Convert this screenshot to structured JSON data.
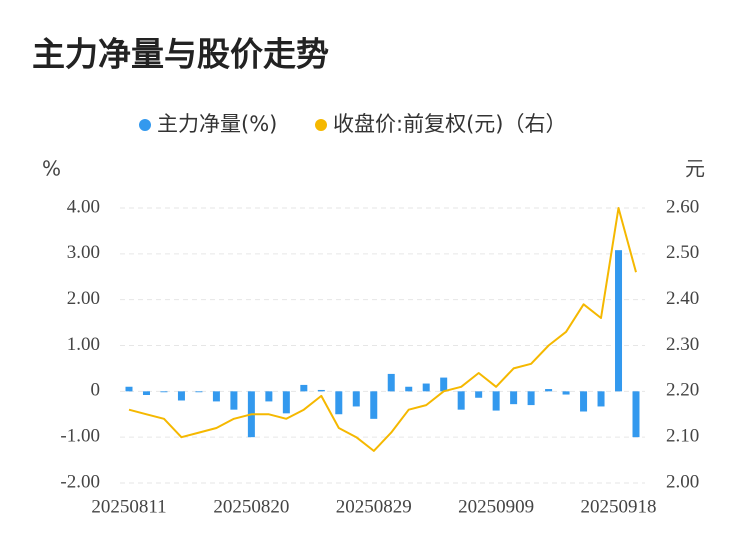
{
  "chart_data": {
    "type": "bar_line",
    "title": "主力净量与股价走势",
    "y_label": "%",
    "y2_label": "元",
    "categories": [
      "20250811",
      null,
      null,
      null,
      null,
      null,
      null,
      "20250820",
      null,
      null,
      null,
      null,
      null,
      null,
      "20250829",
      null,
      null,
      null,
      null,
      null,
      null,
      "20250909",
      null,
      null,
      null,
      null,
      null,
      null,
      "20250918",
      null
    ],
    "series": [
      {
        "name": "主力净量(%)",
        "type": "bar",
        "color": "#3399ee",
        "values": [
          0.1,
          -0.08,
          -0.02,
          -0.2,
          -0.02,
          -0.22,
          -0.4,
          -1.0,
          -0.22,
          -0.48,
          0.14,
          0.03,
          -0.5,
          -0.33,
          -0.6,
          0.38,
          0.1,
          0.17,
          0.3,
          -0.4,
          -0.14,
          -0.42,
          -0.28,
          -0.3,
          0.05,
          -0.07,
          -0.44,
          -0.33,
          3.08,
          -1.0
        ]
      },
      {
        "name": "收盘价:前复权(元)（右）",
        "type": "line",
        "axis": "y2",
        "color": "#f5b800",
        "values": [
          2.16,
          2.15,
          2.14,
          2.1,
          2.11,
          2.12,
          2.14,
          2.15,
          2.15,
          2.14,
          2.16,
          2.19,
          2.12,
          2.1,
          2.07,
          2.11,
          2.16,
          2.17,
          2.2,
          2.21,
          2.24,
          2.21,
          2.25,
          2.26,
          2.3,
          2.33,
          2.39,
          2.36,
          2.6,
          2.46
        ]
      }
    ],
    "ylim": [
      -2,
      4
    ],
    "yticks": [
      {
        "value": -2,
        "label": "-2.00"
      },
      {
        "value": -1,
        "label": "-1.00"
      },
      0,
      {
        "value": 1,
        "label": "1.00"
      },
      {
        "value": 2,
        "label": "2.00"
      },
      {
        "value": 3,
        "label": "3.00"
      },
      {
        "value": 4,
        "label": "4.00"
      }
    ],
    "y2lim": [
      2.0,
      2.6
    ],
    "y2ticks": [
      {
        "value": 2.0,
        "label": "2.00"
      },
      {
        "value": 2.1,
        "label": "2.10"
      },
      {
        "value": 2.2,
        "label": "2.20"
      },
      {
        "value": 2.3,
        "label": "2.30"
      },
      {
        "value": 2.4,
        "label": "2.40"
      },
      {
        "value": 2.5,
        "label": "2.50"
      },
      {
        "value": 2.6,
        "label": "2.60"
      }
    ],
    "grid": true
  }
}
